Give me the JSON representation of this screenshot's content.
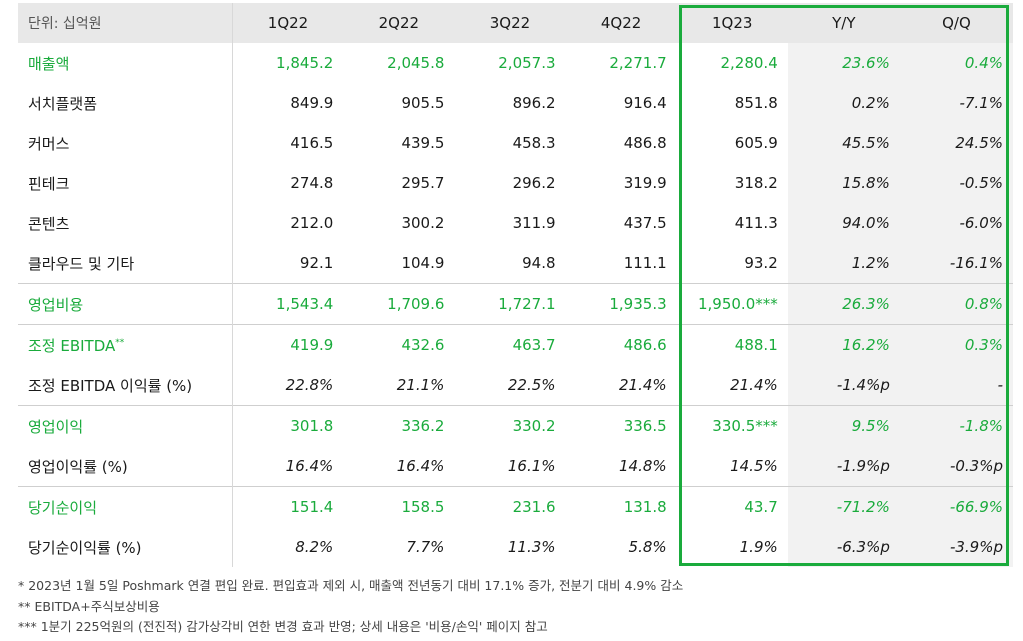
{
  "header": {
    "unit": "단위: 십억원",
    "columns": [
      "1Q22",
      "2Q22",
      "3Q22",
      "4Q22",
      "1Q23",
      "Y/Y",
      "Q/Q"
    ]
  },
  "rows": [
    {
      "label": "매출액",
      "sup": "",
      "values": [
        "1,845.2",
        "2,045.8",
        "2,057.3",
        "2,271.7",
        "2,280.4",
        "23.6%",
        "0.4%"
      ]
    },
    {
      "label": "서치플랫폼",
      "sup": "",
      "values": [
        "849.9",
        "905.5",
        "896.2",
        "916.4",
        "851.8",
        "0.2%",
        "-7.1%"
      ]
    },
    {
      "label": "커머스",
      "sup": "",
      "values": [
        "416.5",
        "439.5",
        "458.3",
        "486.8",
        "605.9",
        "45.5%",
        "24.5%"
      ]
    },
    {
      "label": "핀테크",
      "sup": "",
      "values": [
        "274.8",
        "295.7",
        "296.2",
        "319.9",
        "318.2",
        "15.8%",
        "-0.5%"
      ]
    },
    {
      "label": "콘텐츠",
      "sup": "",
      "values": [
        "212.0",
        "300.2",
        "311.9",
        "437.5",
        "411.3",
        "94.0%",
        "-6.0%"
      ]
    },
    {
      "label": "클라우드 및 기타",
      "sup": "",
      "values": [
        "92.1",
        "104.9",
        "94.8",
        "111.1",
        "93.2",
        "1.2%",
        "-16.1%"
      ]
    },
    {
      "label": "영업비용",
      "sup": "",
      "values": [
        "1,543.4",
        "1,709.6",
        "1,727.1",
        "1,935.3",
        "1,950.0***",
        "26.3%",
        "0.8%"
      ]
    },
    {
      "label": "조정 EBITDA",
      "sup": "**",
      "values": [
        "419.9",
        "432.6",
        "463.7",
        "486.6",
        "488.1",
        "16.2%",
        "0.3%"
      ]
    },
    {
      "label": "조정 EBITDA 이익률 (%)",
      "sup": "",
      "values": [
        "22.8%",
        "21.1%",
        "22.5%",
        "21.4%",
        "21.4%",
        "-1.4%p",
        "-"
      ]
    },
    {
      "label": "영업이익",
      "sup": "",
      "values": [
        "301.8",
        "336.2",
        "330.2",
        "336.5",
        "330.5***",
        "9.5%",
        "-1.8%"
      ]
    },
    {
      "label": "영업이익률 (%)",
      "sup": "",
      "values": [
        "16.4%",
        "16.4%",
        "16.1%",
        "14.8%",
        "14.5%",
        "-1.9%p",
        "-0.3%p"
      ]
    },
    {
      "label": "당기순이익",
      "sup": "",
      "values": [
        "151.4",
        "158.5",
        "231.6",
        "131.8",
        "43.7",
        "-71.2%",
        "-66.9%"
      ]
    },
    {
      "label": "당기순이익률 (%)",
      "sup": "",
      "values": [
        "8.2%",
        "7.7%",
        "11.3%",
        "5.8%",
        "1.9%",
        "-6.3%p",
        "-3.9%p"
      ]
    }
  ],
  "notes": [
    "* 2023년 1월 5일 Poshmark 연결 편입 완료. 편입효과 제외 시, 매출액 전년동기 대비 17.1% 증가, 전분기 대비 4.9% 감소",
    "** EBITDA+주식보상비용",
    "*** 1분기 225억원의 (전진적) 감가상각비 연한 변경 효과 반영; 상세 내용은 '비용/손익' 페이지 참고"
  ],
  "colors": {
    "accent": "#1aab3c",
    "header_bg": "#e8e8e8",
    "highlight_border": "#1aab3c"
  }
}
